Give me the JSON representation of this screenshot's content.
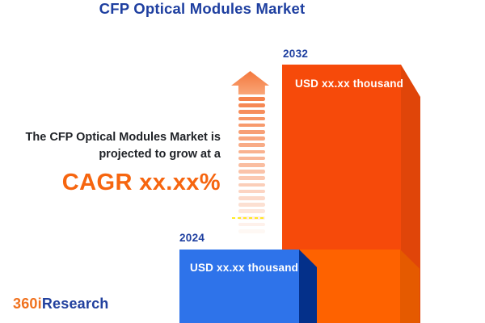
{
  "header": {
    "title": "CFP Optical Modules Market"
  },
  "annotation": {
    "line1": "The CFP Optical Modules Market is",
    "line2": "projected to grow at a",
    "cagr": "CAGR xx.xx%"
  },
  "chart_data": {
    "type": "bar",
    "categories": [
      "2024",
      "2032"
    ],
    "values": [
      "xx.xx",
      "xx.xx"
    ],
    "value_labels": [
      "USD xx.xx thousand",
      "USD xx.xx thousand"
    ],
    "unit": "USD thousand",
    "title": "CFP Optical Modules Market",
    "annotation": "The CFP Optical Modules Market is projected to grow at a CAGR xx.xx%",
    "legend": "none",
    "bar_colors": {
      "2024": "#2e73ea",
      "2032": "#f64a0a"
    }
  },
  "logo": {
    "part1": "360i",
    "part2": "Research"
  },
  "icons": {
    "growth_arrow": "striped-up-arrow"
  },
  "colors": {
    "heading_blue": "#1e3fa0",
    "body_text": "#1f2227",
    "cagr_orange": "#f6650f",
    "bar_2024_front": "#2e73ea",
    "bar_2024_side": "#04308a",
    "bar_2032_front": "#f64a0a",
    "bar_2032_side": "#e04509",
    "bar_2032_light_front": "#fe6200",
    "bar_2032_light_side": "#e55a00",
    "arrow_salmon": "#f5824b",
    "logo_orange": "#f0711d",
    "logo_blue": "#21409e",
    "background": "#ffffff"
  }
}
